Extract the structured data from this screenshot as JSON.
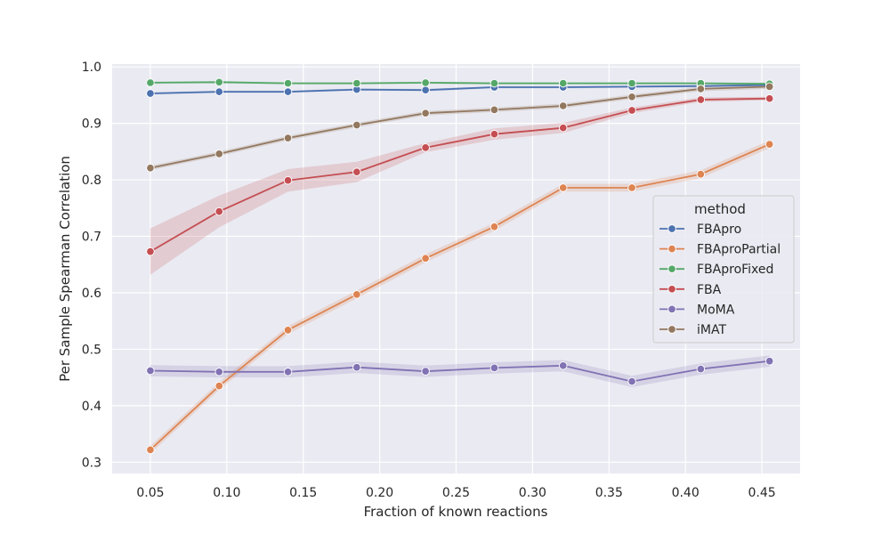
{
  "chart_data": {
    "type": "line",
    "title": "",
    "xlabel": "Fraction of known reactions",
    "ylabel": "Per Sample Spearman Correlation",
    "xlim": [
      0.025,
      0.475
    ],
    "ylim": [
      0.28,
      1.005
    ],
    "xticks": [
      0.05,
      0.1,
      0.15,
      0.2,
      0.25,
      0.3,
      0.35,
      0.4,
      0.45
    ],
    "xtick_labels": [
      "0.05",
      "0.10",
      "0.15",
      "0.20",
      "0.25",
      "0.30",
      "0.35",
      "0.40",
      "0.45"
    ],
    "yticks": [
      0.3,
      0.4,
      0.5,
      0.6,
      0.7,
      0.8,
      0.9,
      1.0
    ],
    "ytick_labels": [
      "0.3",
      "0.4",
      "0.5",
      "0.6",
      "0.7",
      "0.8",
      "0.9",
      "1.0"
    ],
    "grid": true,
    "legend": {
      "title": "method",
      "position": "right"
    },
    "x": [
      0.05,
      0.095,
      0.14,
      0.185,
      0.23,
      0.275,
      0.32,
      0.365,
      0.41,
      0.455
    ],
    "series": [
      {
        "name": "FBApro",
        "color": "#4c72b0",
        "values": [
          0.953,
          0.956,
          0.956,
          0.96,
          0.959,
          0.964,
          0.964,
          0.965,
          0.966,
          0.968
        ],
        "ci": 0.002
      },
      {
        "name": "FBAproPartial",
        "color": "#dd8452",
        "values": [
          0.322,
          0.435,
          0.534,
          0.597,
          0.661,
          0.717,
          0.786,
          0.786,
          0.81,
          0.863
        ],
        "ci": 0.007
      },
      {
        "name": "FBAproFixed",
        "color": "#55a868",
        "values": [
          0.972,
          0.973,
          0.971,
          0.971,
          0.972,
          0.971,
          0.971,
          0.971,
          0.971,
          0.97
        ],
        "ci": 0.002
      },
      {
        "name": "FBA",
        "color": "#c44e52",
        "values": [
          0.673,
          0.744,
          0.799,
          0.814,
          0.857,
          0.881,
          0.892,
          0.923,
          0.942,
          0.944
        ],
        "ci_half": [
          0.041,
          0.028,
          0.02,
          0.018,
          0.008,
          0.01,
          0.009,
          0.005,
          0.004,
          0.003
        ]
      },
      {
        "name": "MoMA",
        "color": "#8172b3",
        "values": [
          0.462,
          0.46,
          0.46,
          0.468,
          0.461,
          0.467,
          0.471,
          0.443,
          0.465,
          0.479
        ],
        "ci": 0.01
      },
      {
        "name": "iMAT",
        "color": "#937860",
        "values": [
          0.821,
          0.846,
          0.874,
          0.897,
          0.918,
          0.924,
          0.931,
          0.947,
          0.961,
          0.965
        ],
        "ci": 0.004
      }
    ]
  }
}
